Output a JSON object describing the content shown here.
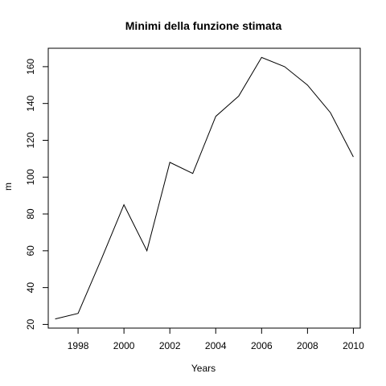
{
  "chart_data": {
    "type": "line",
    "title": "Minimi della funzione stimata",
    "xlabel": "Years",
    "ylabel": "m",
    "xlim": [
      1996.7,
      2010.3
    ],
    "ylim": [
      18,
      170
    ],
    "xticks": [
      1998,
      2000,
      2002,
      2004,
      2006,
      2008,
      2010
    ],
    "yticks": [
      20,
      40,
      60,
      80,
      100,
      120,
      140,
      160
    ],
    "grid": false,
    "legend": "none",
    "line_color": "#000000",
    "series": [
      {
        "x": [
          1997,
          1998,
          1999,
          2000,
          2001,
          2002,
          2003,
          2004,
          2005,
          2006,
          2007,
          2008,
          2009,
          2010
        ],
        "values": [
          23,
          26,
          55,
          85,
          60,
          108,
          102,
          133,
          144,
          165,
          160,
          150,
          135,
          111
        ]
      }
    ]
  }
}
